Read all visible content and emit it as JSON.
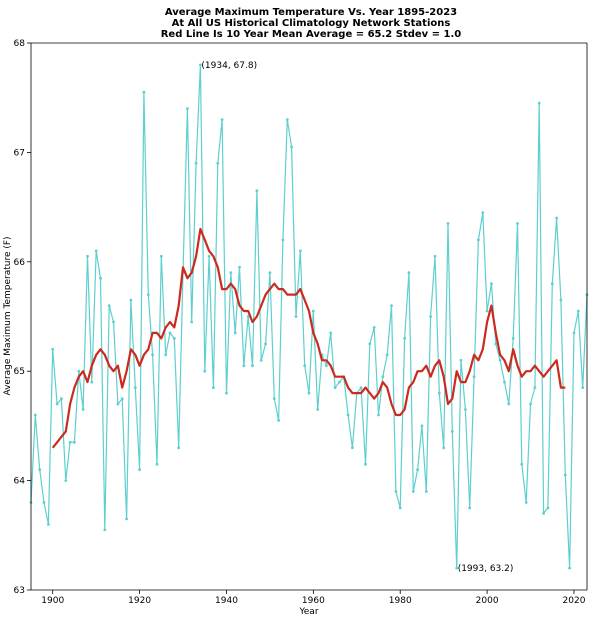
{
  "chart_data": {
    "type": "line",
    "title": [
      "Average Maximum Temperature Vs. Year 1895-2023",
      "At All US Historical Climatology Network Stations",
      "Red Line Is 10 Year Mean  Average = 65.2 Stdev = 1.0"
    ],
    "xlabel": "Year",
    "ylabel": "Average Maximum Temperature (F)",
    "xlim": [
      1895,
      2023
    ],
    "ylim": [
      63,
      68
    ],
    "xticks": [
      1900,
      1920,
      1940,
      1960,
      1980,
      2000,
      2020
    ],
    "yticks": [
      63,
      64,
      65,
      66,
      67,
      68
    ],
    "grid": false,
    "colors": {
      "annual": "#5dcfcf",
      "mean": "#cc2a1e"
    },
    "series": [
      {
        "x": [
          1895,
          1896,
          1897,
          1898,
          1899,
          1900,
          1901,
          1902,
          1903,
          1904,
          1905,
          1906,
          1907,
          1908,
          1909,
          1910,
          1911,
          1912,
          1913,
          1914,
          1915,
          1916,
          1917,
          1918,
          1919,
          1920,
          1921,
          1922,
          1923,
          1924,
          1925,
          1926,
          1927,
          1928,
          1929,
          1930,
          1931,
          1932,
          1933,
          1934,
          1935,
          1936,
          1937,
          1938,
          1939,
          1940,
          1941,
          1942,
          1943,
          1944,
          1945,
          1946,
          1947,
          1948,
          1949,
          1950,
          1951,
          1952,
          1953,
          1954,
          1955,
          1956,
          1957,
          1958,
          1959,
          1960,
          1961,
          1962,
          1963,
          1964,
          1965,
          1966,
          1967,
          1968,
          1969,
          1970,
          1971,
          1972,
          1973,
          1974,
          1975,
          1976,
          1977,
          1978,
          1979,
          1980,
          1981,
          1982,
          1983,
          1984,
          1985,
          1986,
          1987,
          1988,
          1989,
          1990,
          1991,
          1992,
          1993,
          1994,
          1995,
          1996,
          1997,
          1998,
          1999,
          2000,
          2001,
          2002,
          2003,
          2004,
          2005,
          2006,
          2007,
          2008,
          2009,
          2010,
          2011,
          2012,
          2013,
          2014,
          2015,
          2016,
          2017,
          2018,
          2019,
          2020,
          2021,
          2022,
          2023
        ],
        "y": [
          63.8,
          64.6,
          64.1,
          63.8,
          63.6,
          65.2,
          64.7,
          64.75,
          64.0,
          64.35,
          64.35,
          65.0,
          64.65,
          66.05,
          64.9,
          66.1,
          65.85,
          63.55,
          65.6,
          65.45,
          64.7,
          64.75,
          63.65,
          65.65,
          64.85,
          64.1,
          67.55,
          65.7,
          65.15,
          64.15,
          66.05,
          65.15,
          65.35,
          65.3,
          64.3,
          65.9,
          67.4,
          65.45,
          66.9,
          67.8,
          65.0,
          66.05,
          64.85,
          66.9,
          67.3,
          64.8,
          65.9,
          65.35,
          65.95,
          65.05,
          65.5,
          65.05,
          66.65,
          65.1,
          65.25,
          65.9,
          64.75,
          64.55,
          66.2,
          67.3,
          67.05,
          65.5,
          66.1,
          65.05,
          64.8,
          65.55,
          64.65,
          65.15,
          65.05,
          65.35,
          64.85,
          64.9,
          64.95,
          64.6,
          64.3,
          64.8,
          64.85,
          64.15,
          65.25,
          65.4,
          64.6,
          64.95,
          65.15,
          65.6,
          63.9,
          63.75,
          65.3,
          65.9,
          63.9,
          64.1,
          64.5,
          63.9,
          65.5,
          66.05,
          64.8,
          64.3,
          66.35,
          64.45,
          63.2,
          65.1,
          64.65,
          63.75,
          64.95,
          66.2,
          66.45,
          65.55,
          65.8,
          65.25,
          65.1,
          64.9,
          64.7,
          65.3,
          66.35,
          64.15,
          63.8,
          64.7,
          64.85,
          67.45,
          63.7,
          63.75,
          65.8,
          66.4,
          65.65,
          64.05,
          63.2,
          65.35,
          65.55,
          64.85,
          65.7
        ]
      },
      {
        "x": [
          1900,
          1901,
          1902,
          1903,
          1904,
          1905,
          1906,
          1907,
          1908,
          1909,
          1910,
          1911,
          1912,
          1913,
          1914,
          1915,
          1916,
          1917,
          1918,
          1919,
          1920,
          1921,
          1922,
          1923,
          1924,
          1925,
          1926,
          1927,
          1928,
          1929,
          1930,
          1931,
          1932,
          1933,
          1934,
          1935,
          1936,
          1937,
          1938,
          1939,
          1940,
          1941,
          1942,
          1943,
          1944,
          1945,
          1946,
          1947,
          1948,
          1949,
          1950,
          1951,
          1952,
          1953,
          1954,
          1955,
          1956,
          1957,
          1958,
          1959,
          1960,
          1961,
          1962,
          1963,
          1964,
          1965,
          1966,
          1967,
          1968,
          1969,
          1970,
          1971,
          1972,
          1973,
          1974,
          1975,
          1976,
          1977,
          1978,
          1979,
          1980,
          1981,
          1982,
          1983,
          1984,
          1985,
          1986,
          1987,
          1988,
          1989,
          1990,
          1991,
          1992,
          1993,
          1994,
          1995,
          1996,
          1997,
          1998,
          1999,
          2000,
          2001,
          2002,
          2003,
          2004,
          2005,
          2006,
          2007,
          2008,
          2009,
          2010,
          2011,
          2012,
          2013,
          2014,
          2015,
          2016,
          2017,
          2018
        ],
        "y": [
          64.3,
          64.35,
          64.4,
          64.45,
          64.7,
          64.85,
          64.95,
          65.0,
          64.9,
          65.05,
          65.15,
          65.2,
          65.15,
          65.05,
          65.0,
          65.05,
          64.85,
          65.0,
          65.2,
          65.15,
          65.05,
          65.15,
          65.2,
          65.35,
          65.35,
          65.3,
          65.4,
          65.45,
          65.4,
          65.6,
          65.95,
          65.85,
          65.9,
          66.05,
          66.3,
          66.2,
          66.1,
          66.05,
          65.95,
          65.75,
          65.75,
          65.8,
          65.75,
          65.6,
          65.55,
          65.55,
          65.45,
          65.5,
          65.6,
          65.7,
          65.75,
          65.8,
          65.75,
          65.75,
          65.7,
          65.7,
          65.7,
          65.75,
          65.65,
          65.55,
          65.35,
          65.25,
          65.1,
          65.1,
          65.05,
          64.95,
          64.95,
          64.95,
          64.85,
          64.8,
          64.8,
          64.8,
          64.85,
          64.8,
          64.75,
          64.8,
          64.9,
          64.85,
          64.7,
          64.6,
          64.6,
          64.65,
          64.85,
          64.9,
          65.0,
          65.0,
          65.05,
          64.95,
          65.05,
          65.1,
          64.95,
          64.7,
          64.75,
          65.0,
          64.9,
          64.9,
          65.0,
          65.15,
          65.1,
          65.2,
          65.45,
          65.6,
          65.35,
          65.15,
          65.1,
          65.0,
          65.2,
          65.05,
          64.95,
          65.0,
          65.0,
          65.05,
          65.0,
          64.95,
          65.0,
          65.05,
          65.1,
          64.85,
          64.85
        ]
      }
    ],
    "annotations": [
      {
        "text": "(1934, 67.8)",
        "x": 1934,
        "y": 67.8
      },
      {
        "text": "(1993, 63.2)",
        "x": 1993,
        "y": 63.2
      }
    ]
  }
}
